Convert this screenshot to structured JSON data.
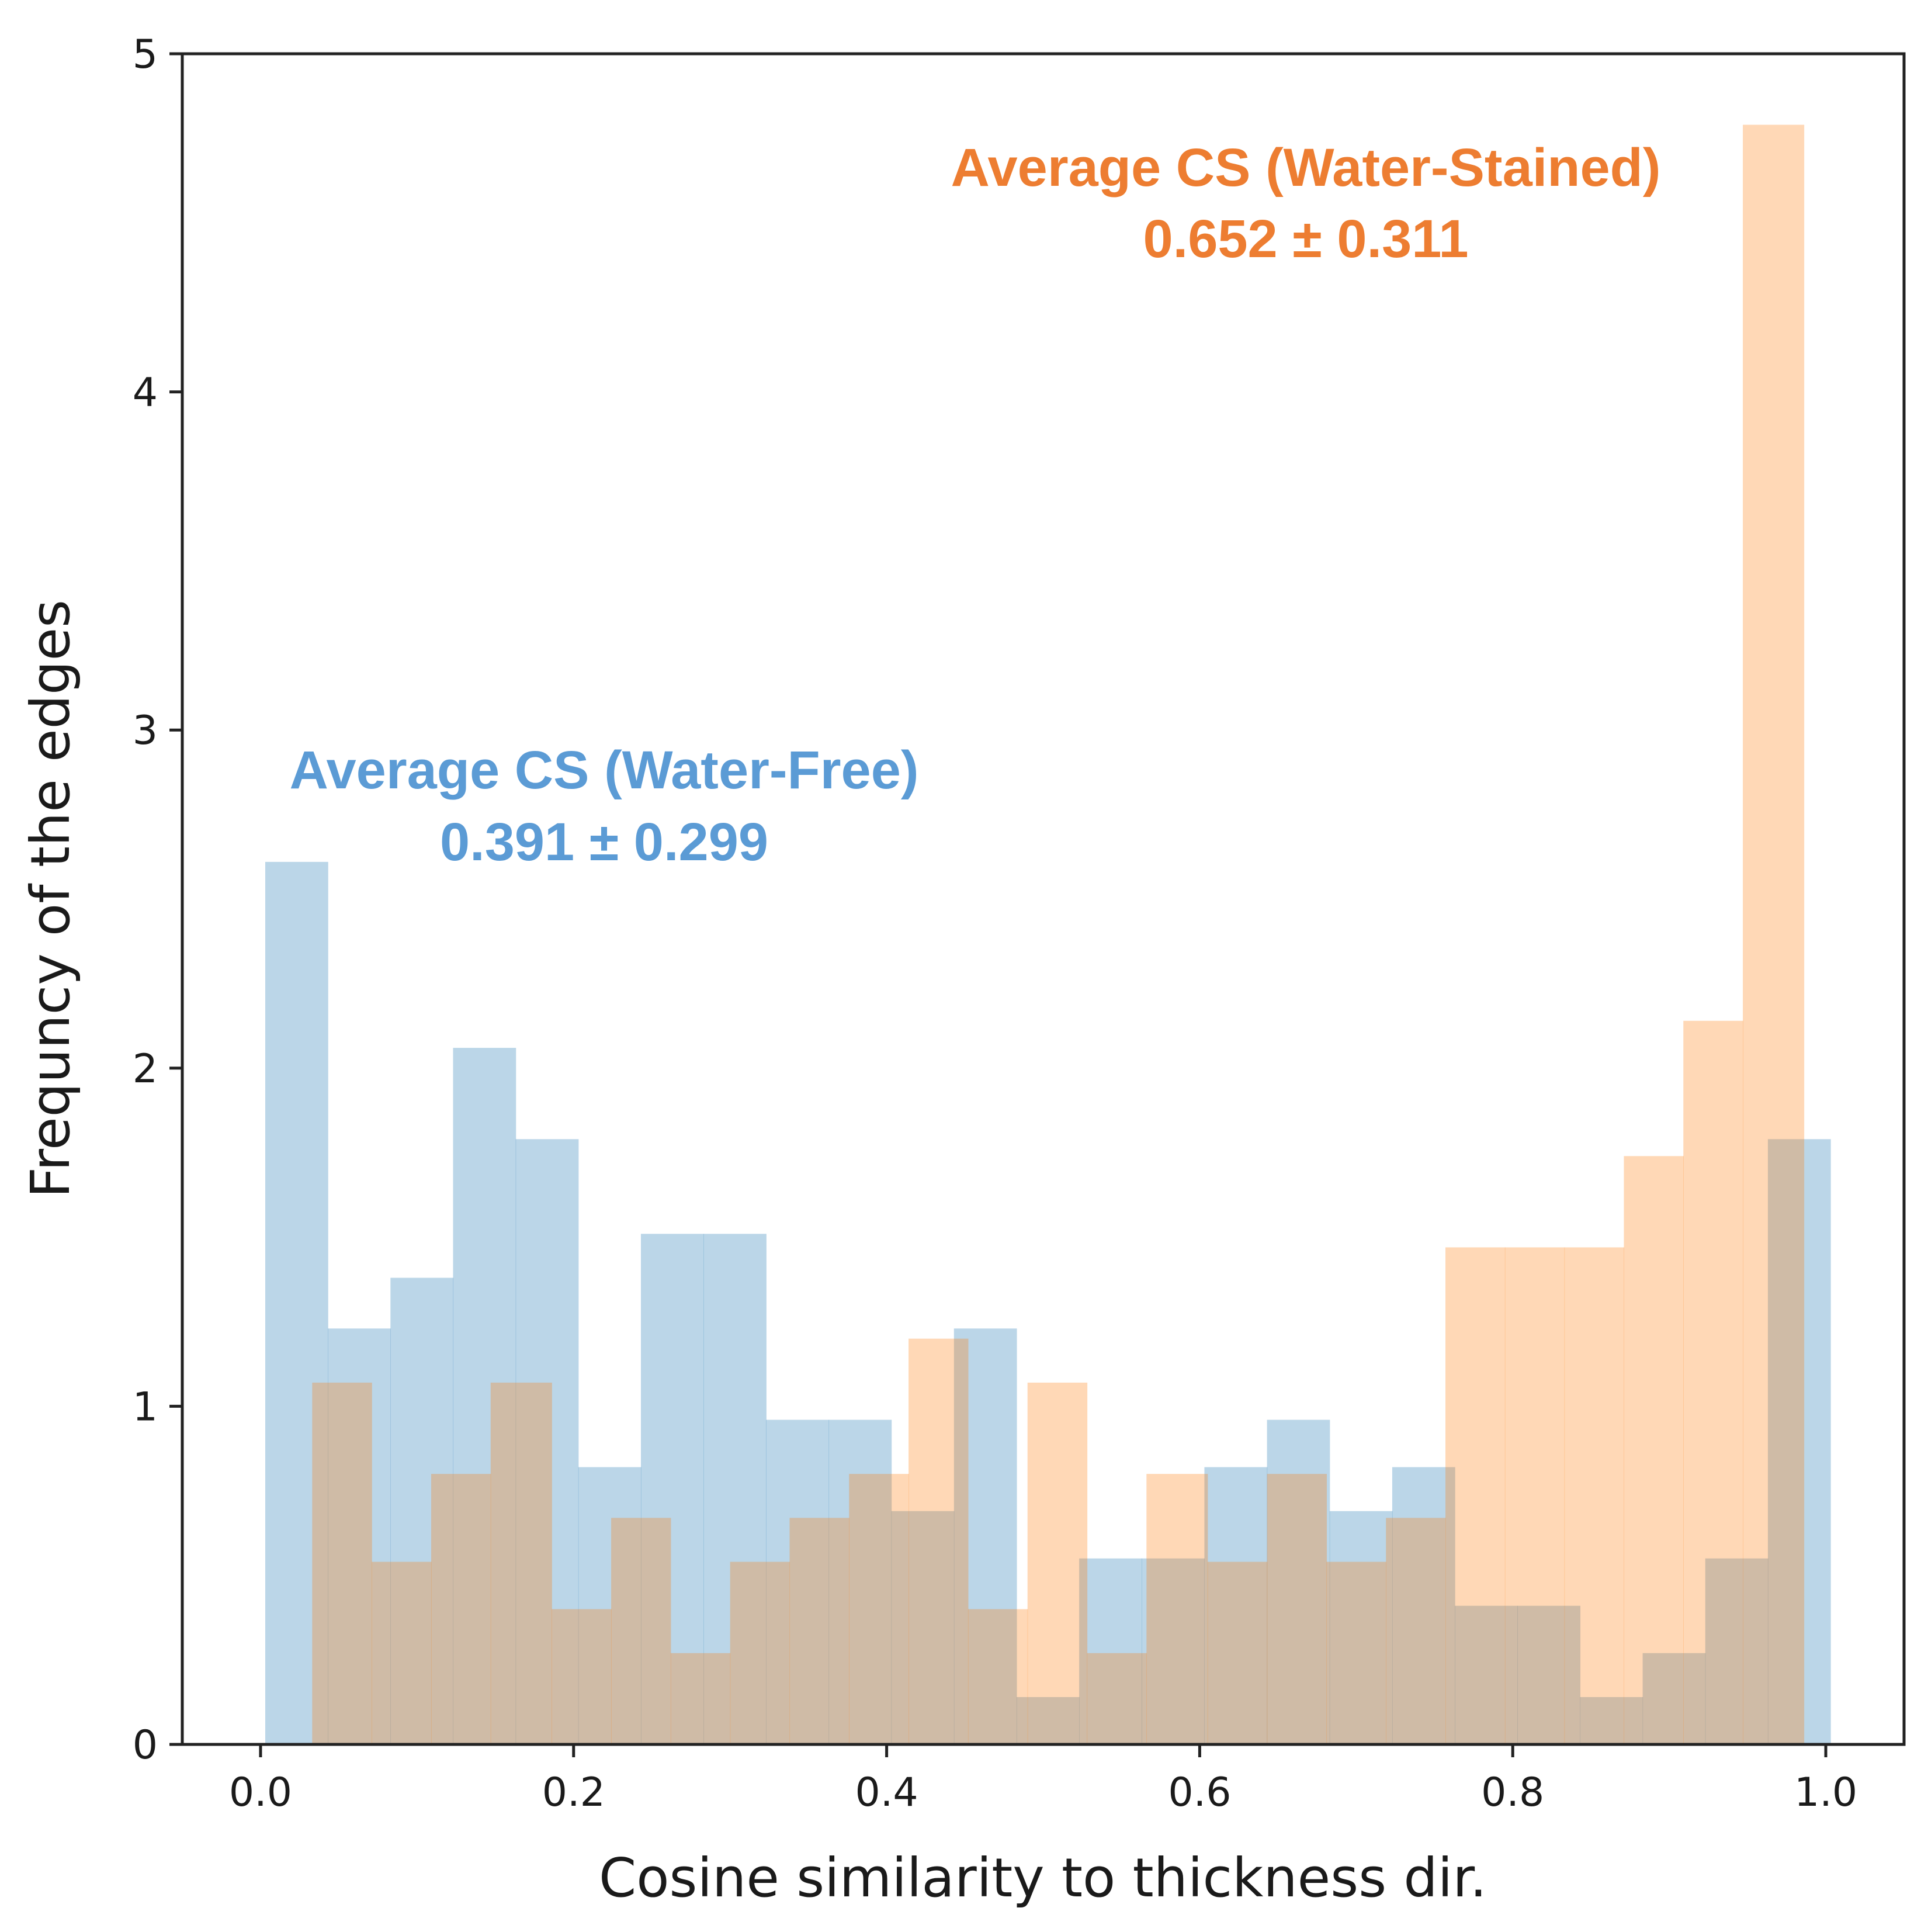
{
  "chart_data": {
    "type": "bar",
    "title": "",
    "xlabel": "Cosine similarity to thickness dir.",
    "ylabel": "Frequncy of the edges",
    "xlim": [
      -0.05,
      1.05
    ],
    "ylim": [
      0,
      5
    ],
    "xticks": [
      0.0,
      0.2,
      0.4,
      0.6,
      0.8,
      1.0
    ],
    "xtick_labels": [
      "0.0",
      "0.2",
      "0.4",
      "0.6",
      "0.8",
      "1.0"
    ],
    "yticks": [
      0,
      1,
      2,
      3,
      4,
      5
    ],
    "ytick_labels": [
      "0",
      "1",
      "2",
      "3",
      "4",
      "5"
    ],
    "grid": false,
    "series": [
      {
        "name": "Water-Free",
        "color": "#1f77b4",
        "opacity": 0.3,
        "annotation_label": "Average CS (Water-Free)",
        "annotation_value": "0.391 ± 0.299",
        "annotation_color": "#5b9bd5",
        "bins": [
          {
            "x0": 0.003,
            "x1": 0.043,
            "value": 2.61
          },
          {
            "x0": 0.043,
            "x1": 0.083,
            "value": 1.23
          },
          {
            "x0": 0.083,
            "x1": 0.123,
            "value": 1.38
          },
          {
            "x0": 0.123,
            "x1": 0.163,
            "value": 2.06
          },
          {
            "x0": 0.163,
            "x1": 0.203,
            "value": 1.79
          },
          {
            "x0": 0.203,
            "x1": 0.243,
            "value": 0.82
          },
          {
            "x0": 0.243,
            "x1": 0.283,
            "value": 1.51
          },
          {
            "x0": 0.283,
            "x1": 0.323,
            "value": 1.51
          },
          {
            "x0": 0.323,
            "x1": 0.363,
            "value": 0.96
          },
          {
            "x0": 0.363,
            "x1": 0.403,
            "value": 0.96
          },
          {
            "x0": 0.403,
            "x1": 0.443,
            "value": 0.69
          },
          {
            "x0": 0.443,
            "x1": 0.483,
            "value": 1.23
          },
          {
            "x0": 0.483,
            "x1": 0.523,
            "value": 0.14
          },
          {
            "x0": 0.523,
            "x1": 0.563,
            "value": 0.55
          },
          {
            "x0": 0.563,
            "x1": 0.603,
            "value": 0.55
          },
          {
            "x0": 0.603,
            "x1": 0.643,
            "value": 0.82
          },
          {
            "x0": 0.643,
            "x1": 0.683,
            "value": 0.96
          },
          {
            "x0": 0.683,
            "x1": 0.723,
            "value": 0.69
          },
          {
            "x0": 0.723,
            "x1": 0.763,
            "value": 0.82
          },
          {
            "x0": 0.763,
            "x1": 0.803,
            "value": 0.41
          },
          {
            "x0": 0.803,
            "x1": 0.843,
            "value": 0.41
          },
          {
            "x0": 0.843,
            "x1": 0.883,
            "value": 0.14
          },
          {
            "x0": 0.883,
            "x1": 0.923,
            "value": 0.27
          },
          {
            "x0": 0.923,
            "x1": 0.963,
            "value": 0.55
          },
          {
            "x0": 0.963,
            "x1": 1.003,
            "value": 1.79
          }
        ]
      },
      {
        "name": "Water-Stained",
        "color": "#ff7f0e",
        "opacity": 0.3,
        "annotation_label": "Average CS (Water-Stained)",
        "annotation_value": "0.652 ± 0.311",
        "annotation_color": "#ed7d31",
        "bins": [
          {
            "x0": 0.033,
            "x1": 0.071,
            "value": 1.07
          },
          {
            "x0": 0.071,
            "x1": 0.109,
            "value": 0.54
          },
          {
            "x0": 0.109,
            "x1": 0.147,
            "value": 0.8
          },
          {
            "x0": 0.147,
            "x1": 0.186,
            "value": 1.07
          },
          {
            "x0": 0.186,
            "x1": 0.224,
            "value": 0.4
          },
          {
            "x0": 0.224,
            "x1": 0.262,
            "value": 0.67
          },
          {
            "x0": 0.262,
            "x1": 0.3,
            "value": 0.27
          },
          {
            "x0": 0.3,
            "x1": 0.338,
            "value": 0.54
          },
          {
            "x0": 0.338,
            "x1": 0.376,
            "value": 0.67
          },
          {
            "x0": 0.376,
            "x1": 0.414,
            "value": 0.8
          },
          {
            "x0": 0.414,
            "x1": 0.452,
            "value": 1.2
          },
          {
            "x0": 0.452,
            "x1": 0.49,
            "value": 0.4
          },
          {
            "x0": 0.49,
            "x1": 0.528,
            "value": 1.07
          },
          {
            "x0": 0.528,
            "x1": 0.566,
            "value": 0.27
          },
          {
            "x0": 0.566,
            "x1": 0.605,
            "value": 0.8
          },
          {
            "x0": 0.605,
            "x1": 0.643,
            "value": 0.54
          },
          {
            "x0": 0.643,
            "x1": 0.681,
            "value": 0.8
          },
          {
            "x0": 0.681,
            "x1": 0.719,
            "value": 0.54
          },
          {
            "x0": 0.719,
            "x1": 0.757,
            "value": 0.67
          },
          {
            "x0": 0.757,
            "x1": 0.795,
            "value": 1.47
          },
          {
            "x0": 0.795,
            "x1": 0.833,
            "value": 1.47
          },
          {
            "x0": 0.833,
            "x1": 0.871,
            "value": 1.47
          },
          {
            "x0": 0.871,
            "x1": 0.909,
            "value": 1.74
          },
          {
            "x0": 0.909,
            "x1": 0.947,
            "value": 2.14
          },
          {
            "x0": 0.947,
            "x1": 0.986,
            "value": 4.79
          }
        ]
      }
    ]
  }
}
